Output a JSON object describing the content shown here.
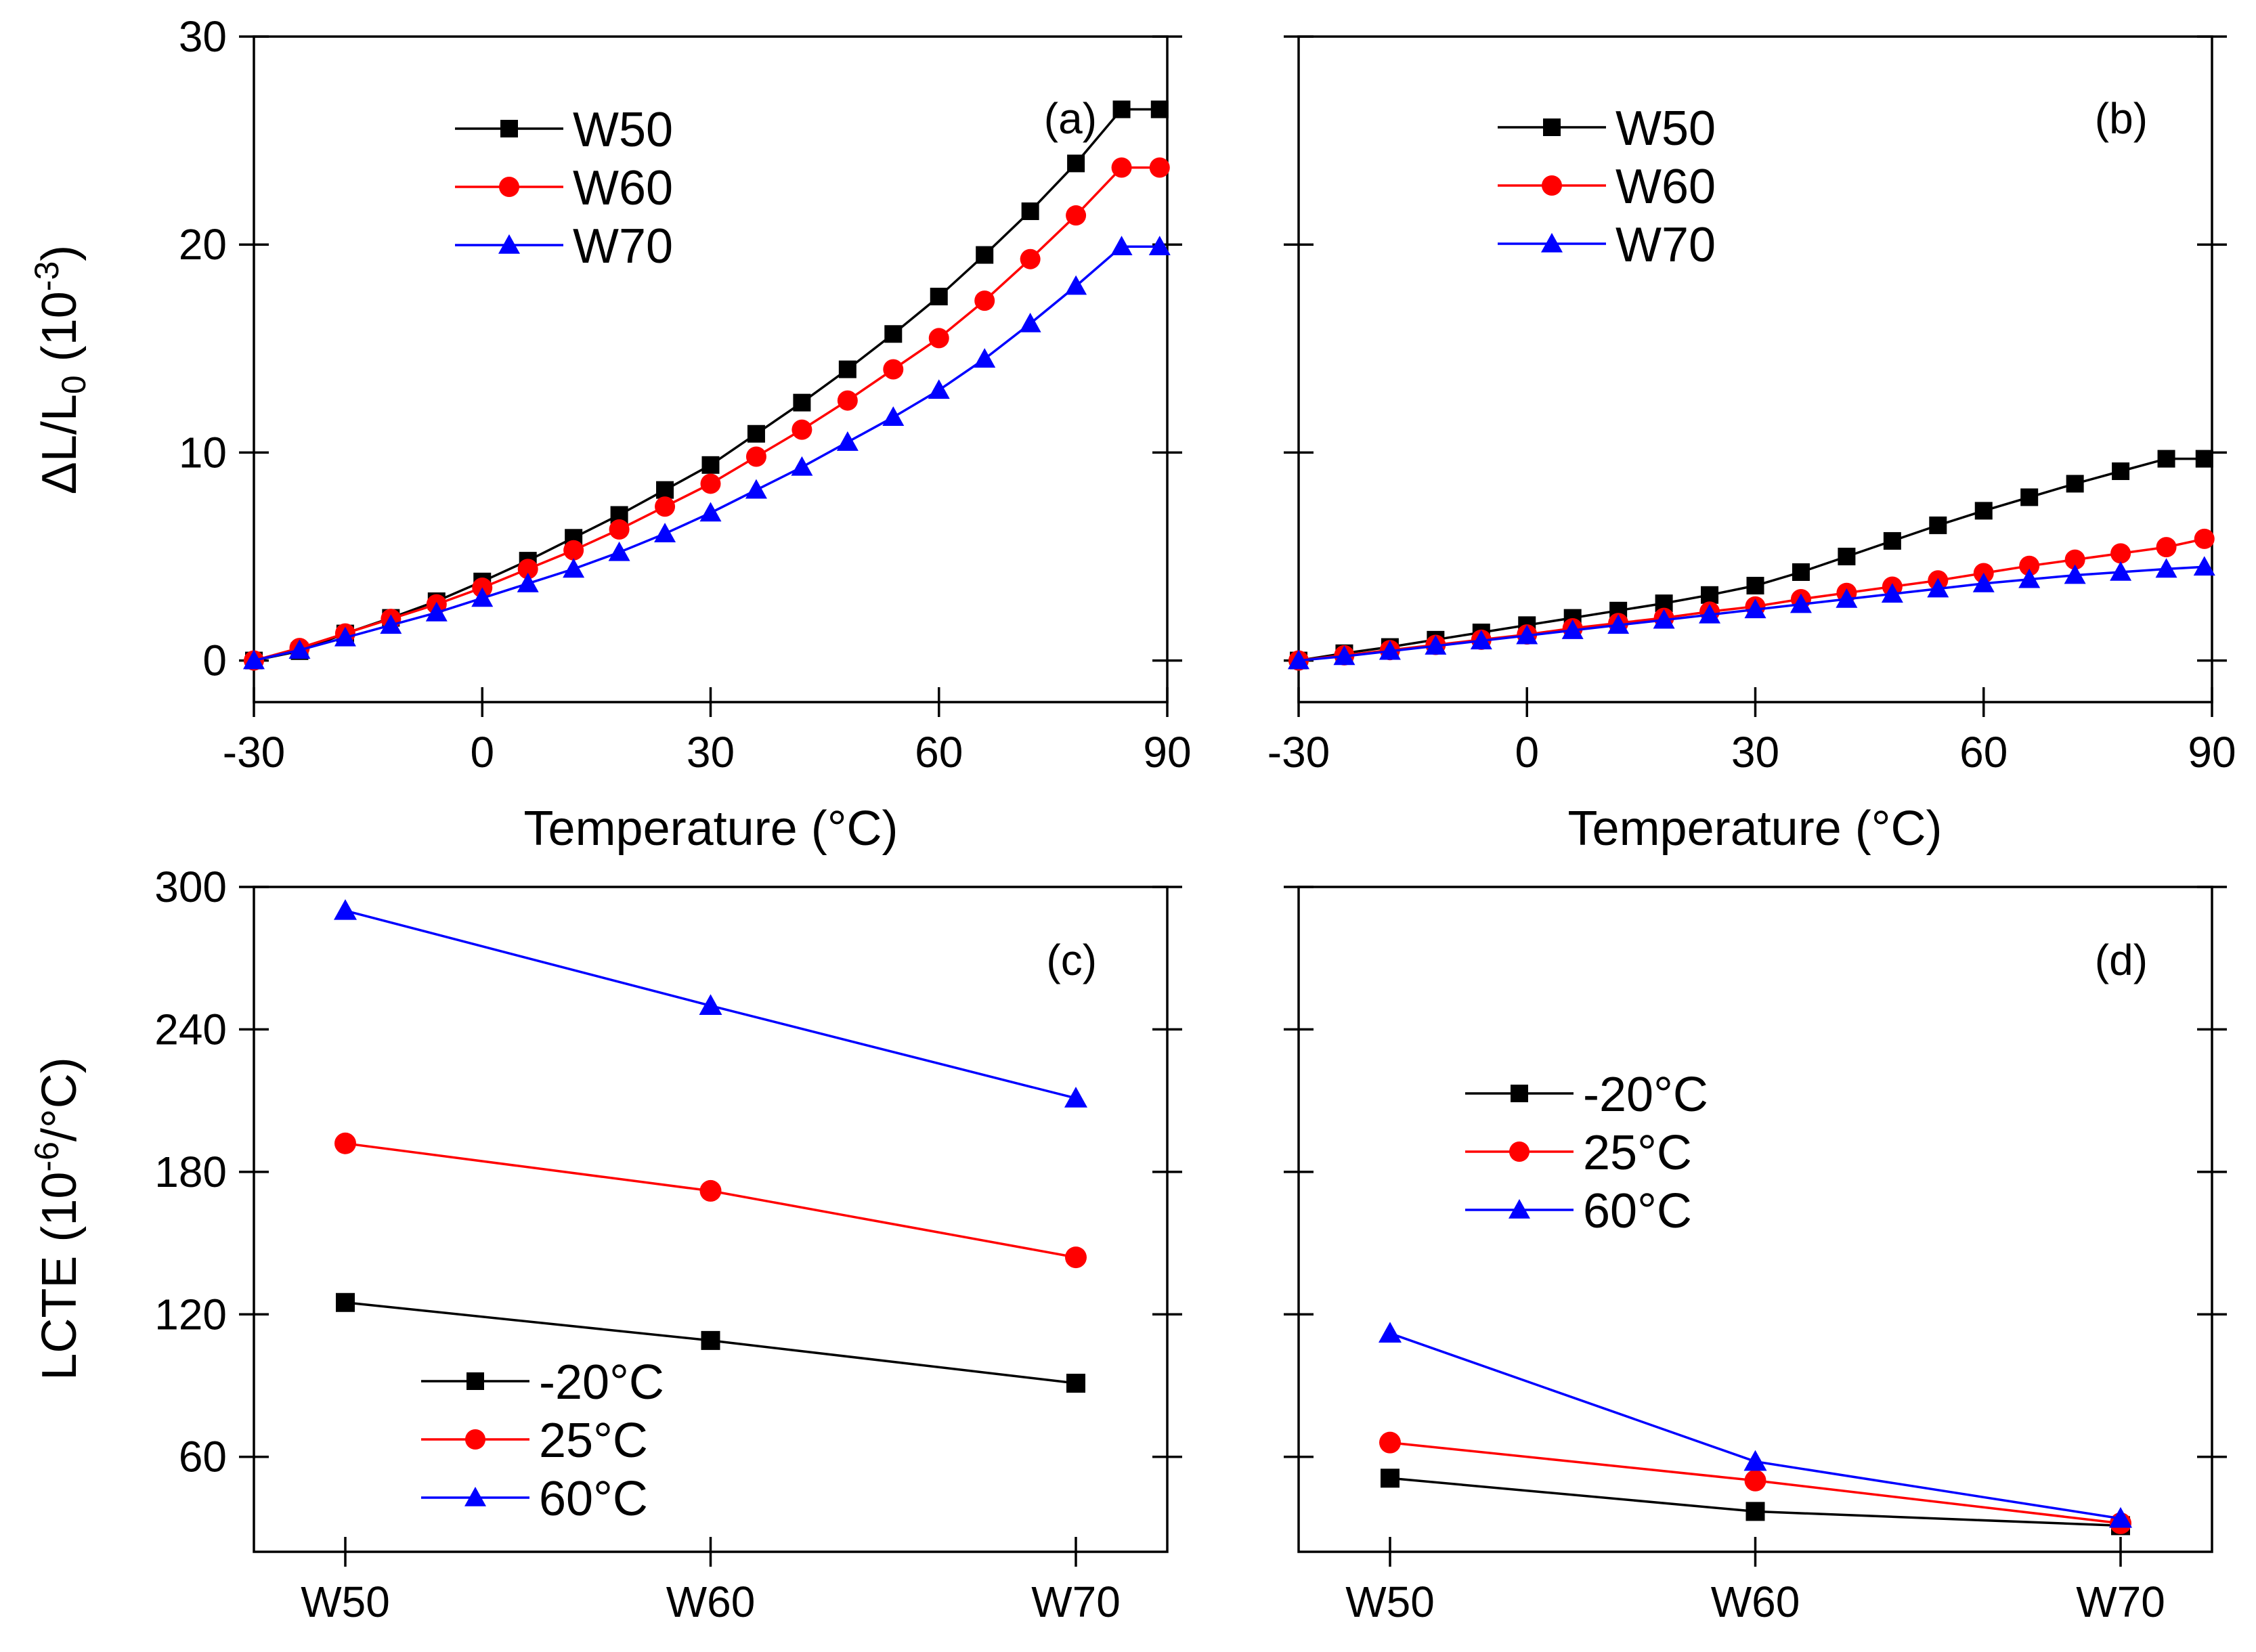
{
  "chart_data": [
    {
      "id": "a",
      "type": "line",
      "panel_label": "(a)",
      "xlabel": "Temperature (°C)",
      "ylabel_main": "ΔL/L",
      "ylabel_sub": "0",
      "ylabel_unit_pre": " (10",
      "ylabel_unit_sup": "-3",
      "ylabel_unit_post": ")",
      "xlim": [
        -30,
        90
      ],
      "ylim": [
        -2,
        30
      ],
      "xticks": [
        -30,
        0,
        30,
        60,
        90
      ],
      "yticks": [
        0,
        10,
        20,
        30
      ],
      "legend_position": "top-left",
      "x": [
        -30,
        -24,
        -18,
        -12,
        -6,
        0,
        6,
        12,
        18,
        24,
        30,
        36,
        42,
        48,
        54,
        60,
        66,
        72,
        78,
        84,
        89
      ],
      "series": [
        {
          "name": "W50",
          "color": "#000000",
          "marker": "square",
          "values": [
            0.0,
            0.45,
            1.3,
            2.05,
            2.85,
            3.8,
            4.8,
            5.9,
            7.0,
            8.2,
            9.4,
            10.9,
            12.4,
            14.0,
            15.7,
            17.5,
            19.5,
            21.6,
            23.9,
            26.5,
            26.5
          ]
        },
        {
          "name": "W60",
          "color": "#ff0000",
          "marker": "circle",
          "values": [
            0.0,
            0.6,
            1.3,
            2.0,
            2.7,
            3.5,
            4.4,
            5.3,
            6.3,
            7.4,
            8.5,
            9.8,
            11.1,
            12.5,
            14.0,
            15.5,
            17.3,
            19.3,
            21.4,
            23.7,
            23.7
          ]
        },
        {
          "name": "W70",
          "color": "#0000ff",
          "marker": "triangle",
          "values": [
            0.0,
            0.5,
            1.1,
            1.7,
            2.3,
            3.0,
            3.7,
            4.4,
            5.2,
            6.1,
            7.1,
            8.2,
            9.3,
            10.5,
            11.7,
            13.0,
            14.5,
            16.2,
            18.0,
            19.9,
            19.9
          ]
        }
      ]
    },
    {
      "id": "b",
      "type": "line",
      "panel_label": "(b)",
      "xlabel": "Temperature (°C)",
      "xlim": [
        -30,
        90
      ],
      "ylim": [
        -2,
        30
      ],
      "xticks": [
        -30,
        0,
        30,
        60,
        90
      ],
      "legend_position": "top-left",
      "x": [
        -30,
        -24,
        -18,
        -12,
        -6,
        0,
        6,
        12,
        18,
        24,
        30,
        36,
        42,
        48,
        54,
        60,
        66,
        72,
        78,
        84,
        89
      ],
      "series": [
        {
          "name": "W50",
          "color": "#000000",
          "marker": "square",
          "values": [
            0.0,
            0.35,
            0.65,
            1.0,
            1.35,
            1.7,
            2.05,
            2.4,
            2.75,
            3.15,
            3.6,
            4.25,
            5.0,
            5.75,
            6.5,
            7.2,
            7.85,
            8.5,
            9.1,
            9.7,
            9.7
          ]
        },
        {
          "name": "W60",
          "color": "#ff0000",
          "marker": "circle",
          "values": [
            0.0,
            0.25,
            0.5,
            0.75,
            1.0,
            1.25,
            1.55,
            1.8,
            2.05,
            2.35,
            2.6,
            2.95,
            3.25,
            3.55,
            3.85,
            4.2,
            4.55,
            4.85,
            5.15,
            5.45,
            5.85
          ]
        },
        {
          "name": "W70",
          "color": "#0000ff",
          "marker": "triangle",
          "values": [
            0.0,
            0.2,
            0.45,
            0.7,
            0.95,
            1.2,
            1.45,
            1.7,
            1.95,
            2.2,
            2.45,
            2.7,
            2.95,
            3.2,
            3.45,
            3.7,
            3.9,
            4.1,
            4.25,
            4.4,
            4.5
          ]
        }
      ]
    },
    {
      "id": "c",
      "type": "line",
      "panel_label": "(c)",
      "ylabel_main": "LCTE",
      "ylabel_unit_pre": " (10",
      "ylabel_unit_sup": "-6",
      "ylabel_unit_post": "/°C)",
      "categories": [
        "W50",
        "W60",
        "W70"
      ],
      "ylim": [
        20,
        300
      ],
      "yticks": [
        60,
        120,
        180,
        240,
        300
      ],
      "legend_position": "bottom-left",
      "series": [
        {
          "name": "-20°C",
          "color": "#000000",
          "marker": "square",
          "values": [
            125,
            109,
            91
          ]
        },
        {
          "name": "25°C",
          "color": "#ff0000",
          "marker": "circle",
          "values": [
            192,
            172,
            144
          ]
        },
        {
          "name": "60°C",
          "color": "#0000ff",
          "marker": "triangle",
          "values": [
            290,
            250,
            211
          ]
        }
      ]
    },
    {
      "id": "d",
      "type": "line",
      "panel_label": "(d)",
      "categories": [
        "W50",
        "W60",
        "W70"
      ],
      "ylim": [
        20,
        300
      ],
      "legend_position": "middle-left",
      "series": [
        {
          "name": "-20°C",
          "color": "#000000",
          "marker": "square",
          "values": [
            51,
            37,
            31
          ]
        },
        {
          "name": "25°C",
          "color": "#ff0000",
          "marker": "circle",
          "values": [
            66,
            50,
            32
          ]
        },
        {
          "name": "60°C",
          "color": "#0000ff",
          "marker": "triangle",
          "values": [
            112,
            58,
            34
          ]
        }
      ]
    }
  ]
}
